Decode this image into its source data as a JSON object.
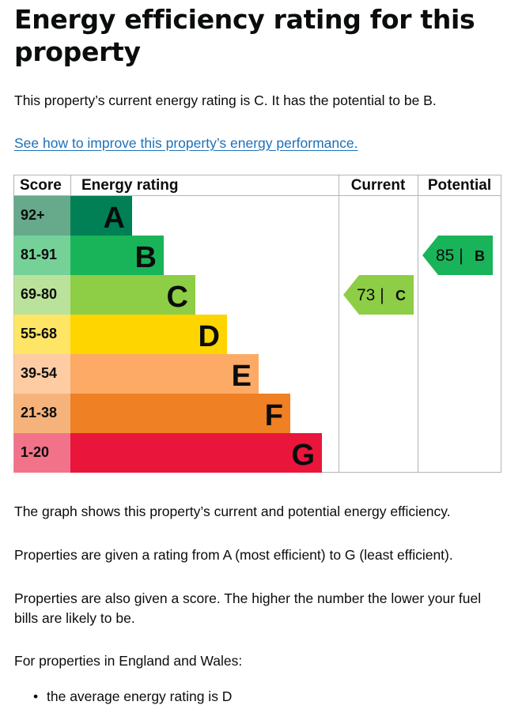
{
  "title": "Energy efficiency rating for this property",
  "lead": "This property’s current energy rating is C. It has the potential to be B.",
  "improve_link": "See how to improve this property’s energy performance.",
  "paragraphs": [
    "The graph shows this property’s current and potential energy efficiency.",
    "Properties are given a rating from A (most efficient) to G (least efficient).",
    "Properties are also given a score. The higher the number the lower your fuel bills are likely to be.",
    "For properties in England and Wales:"
  ],
  "bullets": [
    "the average energy rating is D"
  ],
  "chart_data": {
    "type": "bar",
    "headers": {
      "score": "Score",
      "rating": "Energy rating",
      "current": "Current",
      "potential": "Potential"
    },
    "bands": [
      {
        "letter": "A",
        "range": "92+",
        "color": "#008054",
        "score_bg": "#66a98b"
      },
      {
        "letter": "B",
        "range": "81-91",
        "color": "#19b459",
        "score_bg": "#75d198"
      },
      {
        "letter": "C",
        "range": "69-80",
        "color": "#8dce46",
        "score_bg": "#bbe29b"
      },
      {
        "letter": "D",
        "range": "55-68",
        "color": "#ffd500",
        "score_bg": "#ffe566"
      },
      {
        "letter": "E",
        "range": "39-54",
        "color": "#fcaa65",
        "score_bg": "#fdcca3"
      },
      {
        "letter": "F",
        "range": "21-38",
        "color": "#ef8023",
        "score_bg": "#f5b37b"
      },
      {
        "letter": "G",
        "range": "1-20",
        "color": "#e9153b",
        "score_bg": "#f27389"
      }
    ],
    "current": {
      "value": 73,
      "letter": "C",
      "color": "#8dce46"
    },
    "potential": {
      "value": 85,
      "letter": "B",
      "color": "#19b459"
    }
  }
}
